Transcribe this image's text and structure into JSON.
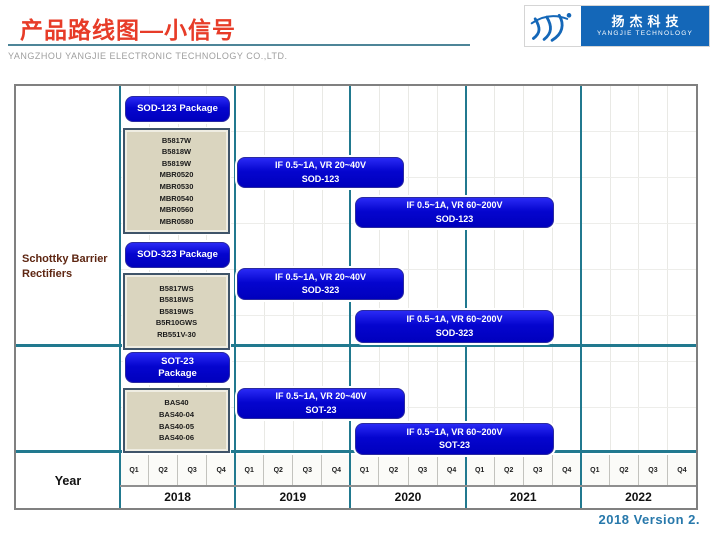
{
  "page": {
    "title": "产品路线图—小信号",
    "subtitle": "YANGZHOU YANGJIE ELECTRONIC TECHNOLOGY  CO.,LTD.",
    "footer_version": "2018  Version 2."
  },
  "logo": {
    "cn_text": "扬杰科技",
    "en_text": "YANGJIE TECHNOLOGY"
  },
  "colors": {
    "title_red": "#e73c28",
    "accent_teal": "#21798f",
    "bar_blue": "#0505cf",
    "logo_blue": "#1467b8",
    "tan_box_fill": "#dad5bf",
    "tan_box_border": "#3f5469",
    "group_label_maroon": "#5e2612",
    "footer_blue": "#2778ab"
  },
  "chart_data": {
    "type": "bar",
    "subtype": "gantt_roadmap",
    "title": "产品路线图—小信号",
    "group_label": "Schottky Barrier Rectifiers",
    "year_axis_label": "Year",
    "years": [
      "2018",
      "2019",
      "2020",
      "2021",
      "2022"
    ],
    "quarters": [
      "Q1",
      "Q2",
      "Q3",
      "Q4"
    ],
    "x_range_years": [
      2018,
      2023
    ],
    "grid": "quarter verticals light gray, year boundaries teal",
    "sections": [
      {
        "package_label": "SOD-123 Package",
        "parts": [
          "B5817W",
          "B5818W",
          "B5819W",
          "MBR0520",
          "MBR0530",
          "MBR0540",
          "MBR0560",
          "MBR0580"
        ],
        "bars": [
          {
            "label": "IF 0.5~1A, VR 20~40V\nSOD-123",
            "start_year": 2019.0,
            "end_year": 2020.5
          },
          {
            "label": "IF 0.5~1A, VR 60~200V\nSOD-123",
            "start_year": 2020.0,
            "end_year": 2021.75
          }
        ]
      },
      {
        "package_label": "SOD-323 Package",
        "parts": [
          "B5817WS",
          "B5818WS",
          "B5819WS",
          "B5R10GWS",
          "RB551V-30"
        ],
        "bars": [
          {
            "label": "IF 0.5~1A, VR 20~40V\nSOD-323",
            "start_year": 2019.0,
            "end_year": 2020.5
          },
          {
            "label": "IF 0.5~1A, VR 60~200V\nSOD-323",
            "start_year": 2020.0,
            "end_year": 2021.75
          }
        ]
      },
      {
        "package_label": "SOT-23\nPackage",
        "parts": [
          "BAS40",
          "BAS40-04",
          "BAS40-05",
          "BAS40-06"
        ],
        "bars": [
          {
            "label": "IF 0.5~1A, VR 20~40V\nSOT-23",
            "start_year": 2019.0,
            "end_year": 2020.5
          },
          {
            "label": "IF 0.5~1A, VR 60~200V\nSOT-23",
            "start_year": 2020.0,
            "end_year": 2021.75
          }
        ]
      }
    ]
  }
}
